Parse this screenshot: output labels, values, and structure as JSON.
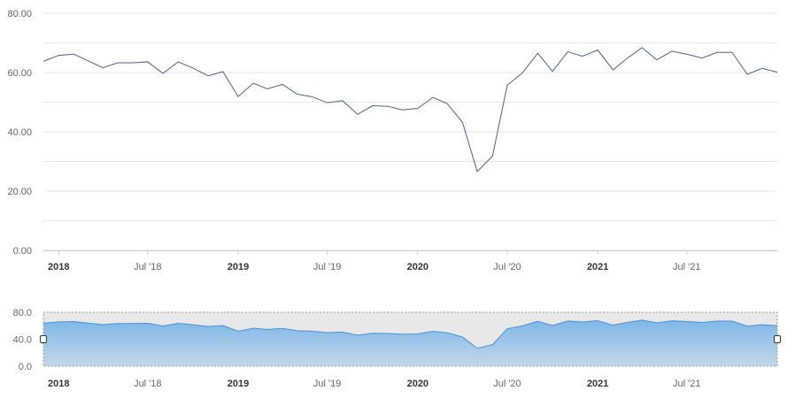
{
  "chart_data": [
    {
      "type": "line",
      "title": "",
      "xlabel": "",
      "ylabel": "",
      "x_range": [
        "2017-12-01",
        "2022-01-01"
      ],
      "ylim": [
        0,
        80
      ],
      "y_ticks": [
        "0.00",
        "20.00",
        "40.00",
        "60.00",
        "80.00"
      ],
      "x_ticks": [
        {
          "label": "2018",
          "date": "2018-01-01",
          "bold": true
        },
        {
          "label": "Jul '18",
          "date": "2018-07-01",
          "bold": false
        },
        {
          "label": "2019",
          "date": "2019-01-01",
          "bold": true
        },
        {
          "label": "Jul '19",
          "date": "2019-07-01",
          "bold": false
        },
        {
          "label": "2020",
          "date": "2020-01-01",
          "bold": true
        },
        {
          "label": "Jul '20",
          "date": "2020-07-01",
          "bold": false
        },
        {
          "label": "2021",
          "date": "2021-01-01",
          "bold": true
        },
        {
          "label": "Jul '21",
          "date": "2021-07-01",
          "bold": false
        }
      ],
      "grid": true,
      "legend": "none",
      "line_color": "#4a6485",
      "series": [
        {
          "x": [
            "2017-12-01",
            "2018-01-01",
            "2018-02-01",
            "2018-03-01",
            "2018-04-01",
            "2018-05-01",
            "2018-06-01",
            "2018-07-01",
            "2018-08-01",
            "2018-09-01",
            "2018-10-01",
            "2018-11-01",
            "2018-12-01",
            "2019-01-01",
            "2019-02-01",
            "2019-03-01",
            "2019-04-01",
            "2019-05-01",
            "2019-06-01",
            "2019-07-01",
            "2019-08-01",
            "2019-09-01",
            "2019-10-01",
            "2019-11-01",
            "2019-12-01",
            "2020-01-01",
            "2020-02-01",
            "2020-03-01",
            "2020-04-01",
            "2020-05-01",
            "2020-06-01",
            "2020-07-01",
            "2020-08-01",
            "2020-09-01",
            "2020-10-01",
            "2020-11-01",
            "2020-12-01",
            "2021-01-01",
            "2021-02-01",
            "2021-03-01",
            "2021-04-01",
            "2021-05-01",
            "2021-06-01",
            "2021-07-01",
            "2021-08-01",
            "2021-09-01",
            "2021-10-01",
            "2021-11-01",
            "2021-12-01",
            "2022-01-01"
          ],
          "values": [
            63.8,
            65.8,
            66.2,
            64.0,
            61.6,
            63.3,
            63.3,
            63.6,
            59.7,
            63.6,
            61.5,
            58.9,
            60.3,
            51.9,
            56.4,
            54.5,
            56.0,
            52.7,
            51.8,
            49.8,
            50.5,
            45.9,
            48.8,
            48.6,
            47.4,
            47.9,
            51.6,
            49.5,
            43.2,
            26.6,
            31.8,
            55.7,
            59.9,
            66.5,
            60.4,
            67.0,
            65.5,
            67.6,
            60.9,
            64.7,
            68.4,
            64.3,
            67.2,
            66.2,
            64.9,
            66.8,
            66.8,
            59.4,
            61.4,
            60.1
          ]
        }
      ]
    },
    {
      "type": "area",
      "role": "navigator",
      "ylim": [
        0,
        80
      ],
      "y_ticks": [
        "0.0",
        "40.0",
        "80.0"
      ],
      "x_ticks": [
        "2018",
        "Jul '18",
        "2019",
        "Jul '19",
        "2020",
        "Jul '20",
        "2021",
        "Jul '21"
      ],
      "fill_color": "#7fb7e8",
      "line_color": "#4a90d9",
      "selection": [
        "2017-12-01",
        "2022-01-01"
      ]
    }
  ]
}
